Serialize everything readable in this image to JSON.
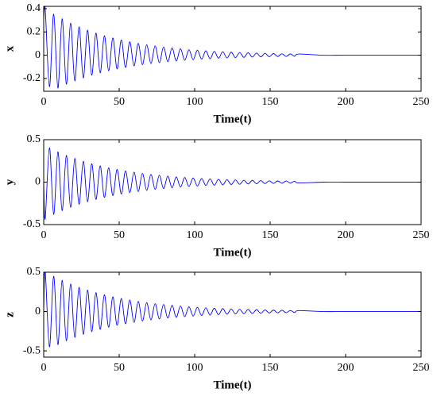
{
  "chart_data": [
    {
      "type": "line",
      "xlabel": "Time(t)",
      "ylabel": "x",
      "color": "#0000ff",
      "grid": false,
      "xlim": [
        0,
        250
      ],
      "xticks": [
        0,
        50,
        100,
        150,
        200,
        250
      ],
      "ylim": [
        -0.31,
        0.42
      ],
      "yticks": [
        -0.2,
        0,
        0.2,
        0.4
      ],
      "x": [
        0,
        1,
        3.8,
        6.6,
        9.4,
        12.2,
        15,
        17.8,
        20.6,
        23.4,
        26.2,
        29,
        31.8,
        34.6,
        37.4,
        40.2,
        43,
        45.8,
        48.6,
        51.4,
        54.2,
        57,
        59.8,
        62.6,
        65.4,
        68.2,
        71,
        73.8,
        76.6,
        79.4,
        82.2,
        85,
        87.8,
        90.6,
        93.4,
        96.2,
        99,
        101.8,
        104.6,
        107.4,
        110.2,
        113,
        115.8,
        118.6,
        121.4,
        124.2,
        127,
        129.8,
        132.6,
        135.4,
        138.2,
        141,
        143.8,
        146.6,
        149.4,
        152.2,
        155,
        157.8,
        160.6,
        163.4,
        166.2,
        169,
        185,
        200,
        225,
        250
      ],
      "values": [
        0.3,
        0.401,
        -0.27,
        0.354,
        -0.283,
        0.313,
        -0.25,
        0.276,
        -0.221,
        0.244,
        -0.195,
        0.215,
        -0.172,
        0.19,
        -0.152,
        0.168,
        -0.134,
        0.148,
        -0.118,
        0.131,
        -0.105,
        0.116,
        -0.093,
        0.102,
        -0.082,
        0.09,
        -0.072,
        0.08,
        -0.064,
        0.071,
        -0.056,
        0.062,
        -0.049,
        0.055,
        -0.044,
        0.048,
        -0.039,
        0.043,
        -0.034,
        0.038,
        -0.031,
        0.033,
        -0.026,
        0.03,
        -0.024,
        0.026,
        -0.021,
        0.023,
        -0.019,
        0.021,
        -0.016,
        0.018,
        -0.014,
        0.016,
        -0.013,
        0.014,
        -0.011,
        0.012,
        -0.01,
        0.011,
        -0.009,
        0.01,
        0,
        0,
        0,
        0
      ]
    },
    {
      "type": "line",
      "xlabel": "Time(t)",
      "ylabel": "y",
      "color": "#0000ff",
      "grid": false,
      "xlim": [
        0,
        250
      ],
      "xticks": [
        0,
        50,
        100,
        150,
        200,
        250
      ],
      "ylim": [
        -0.5,
        0.5
      ],
      "yticks": [
        -0.5,
        0,
        0.5
      ],
      "x": [
        0,
        1,
        3.8,
        6.6,
        9.4,
        12.2,
        15,
        17.8,
        20.6,
        23.4,
        26.2,
        29,
        31.8,
        34.6,
        37.4,
        40.2,
        43,
        45.8,
        48.6,
        51.4,
        54.2,
        57,
        59.8,
        62.6,
        65.4,
        68.2,
        71,
        73.8,
        76.6,
        79.4,
        82.2,
        85,
        87.8,
        90.6,
        93.4,
        96.2,
        99,
        101.8,
        104.6,
        107.4,
        110.2,
        113,
        115.8,
        118.6,
        121.4,
        124.2,
        127,
        129.8,
        132.6,
        135.4,
        138.2,
        141,
        143.8,
        146.6,
        149.4,
        152.2,
        155,
        157.8,
        160.6,
        163.4,
        166.2,
        169,
        185,
        200,
        225,
        250
      ],
      "values": [
        0,
        -0.43,
        0.404,
        -0.38,
        0.357,
        -0.336,
        0.315,
        -0.296,
        0.279,
        -0.262,
        0.246,
        -0.231,
        0.217,
        -0.204,
        0.192,
        -0.18,
        0.169,
        -0.159,
        0.15,
        -0.14,
        0.132,
        -0.124,
        0.117,
        -0.11,
        0.103,
        -0.097,
        0.091,
        -0.085,
        0.081,
        -0.076,
        0.071,
        -0.067,
        0.062,
        -0.059,
        0.055,
        -0.052,
        0.049,
        -0.046,
        0.043,
        -0.04,
        0.038,
        -0.036,
        0.033,
        -0.032,
        0.03,
        -0.028,
        0.026,
        -0.025,
        0.023,
        -0.022,
        0.021,
        -0.019,
        0.018,
        -0.017,
        0.016,
        -0.015,
        0.014,
        -0.013,
        0.013,
        -0.012,
        0.011,
        -0.01,
        0,
        0,
        0,
        0
      ]
    },
    {
      "type": "line",
      "xlabel": "Time(t)",
      "ylabel": "z",
      "color": "#0000ff",
      "grid": false,
      "xlim": [
        0,
        250
      ],
      "xticks": [
        0,
        50,
        100,
        150,
        200,
        250
      ],
      "ylim": [
        -0.58,
        0.5
      ],
      "yticks": [
        -0.5,
        0,
        0.5
      ],
      "x": [
        0,
        1,
        3.8,
        6.6,
        9.4,
        12.2,
        15,
        17.8,
        20.6,
        23.4,
        26.2,
        29,
        31.8,
        34.6,
        37.4,
        40.2,
        43,
        45.8,
        48.6,
        51.4,
        54.2,
        57,
        59.8,
        62.6,
        65.4,
        68.2,
        71,
        73.8,
        76.6,
        79.4,
        82.2,
        85,
        87.8,
        90.6,
        93.4,
        96.2,
        99,
        101.8,
        104.6,
        107.4,
        110.2,
        113,
        115.8,
        118.6,
        121.4,
        124.2,
        127,
        129.8,
        132.6,
        135.4,
        138.2,
        141,
        143.8,
        146.6,
        149.4,
        152.2,
        155,
        157.8,
        160.6,
        163.4,
        166.2,
        169,
        185,
        200,
        225,
        250
      ],
      "values": [
        0,
        0.509,
        -0.45,
        0.449,
        -0.422,
        0.397,
        -0.373,
        0.35,
        -0.329,
        0.309,
        -0.291,
        0.273,
        -0.256,
        0.241,
        -0.227,
        0.213,
        -0.2,
        0.188,
        -0.177,
        0.166,
        -0.156,
        0.147,
        -0.138,
        0.129,
        -0.122,
        0.114,
        -0.108,
        0.101,
        -0.095,
        0.089,
        -0.084,
        0.079,
        -0.074,
        0.07,
        -0.066,
        0.061,
        -0.058,
        0.054,
        -0.051,
        0.048,
        -0.045,
        0.042,
        -0.04,
        0.037,
        -0.035,
        0.033,
        -0.031,
        0.029,
        -0.028,
        0.026,
        -0.024,
        0.023,
        -0.022,
        0.02,
        -0.019,
        0.018,
        -0.017,
        0.016,
        -0.015,
        0.014,
        -0.013,
        0.012,
        0,
        0,
        0,
        0
      ]
    }
  ]
}
